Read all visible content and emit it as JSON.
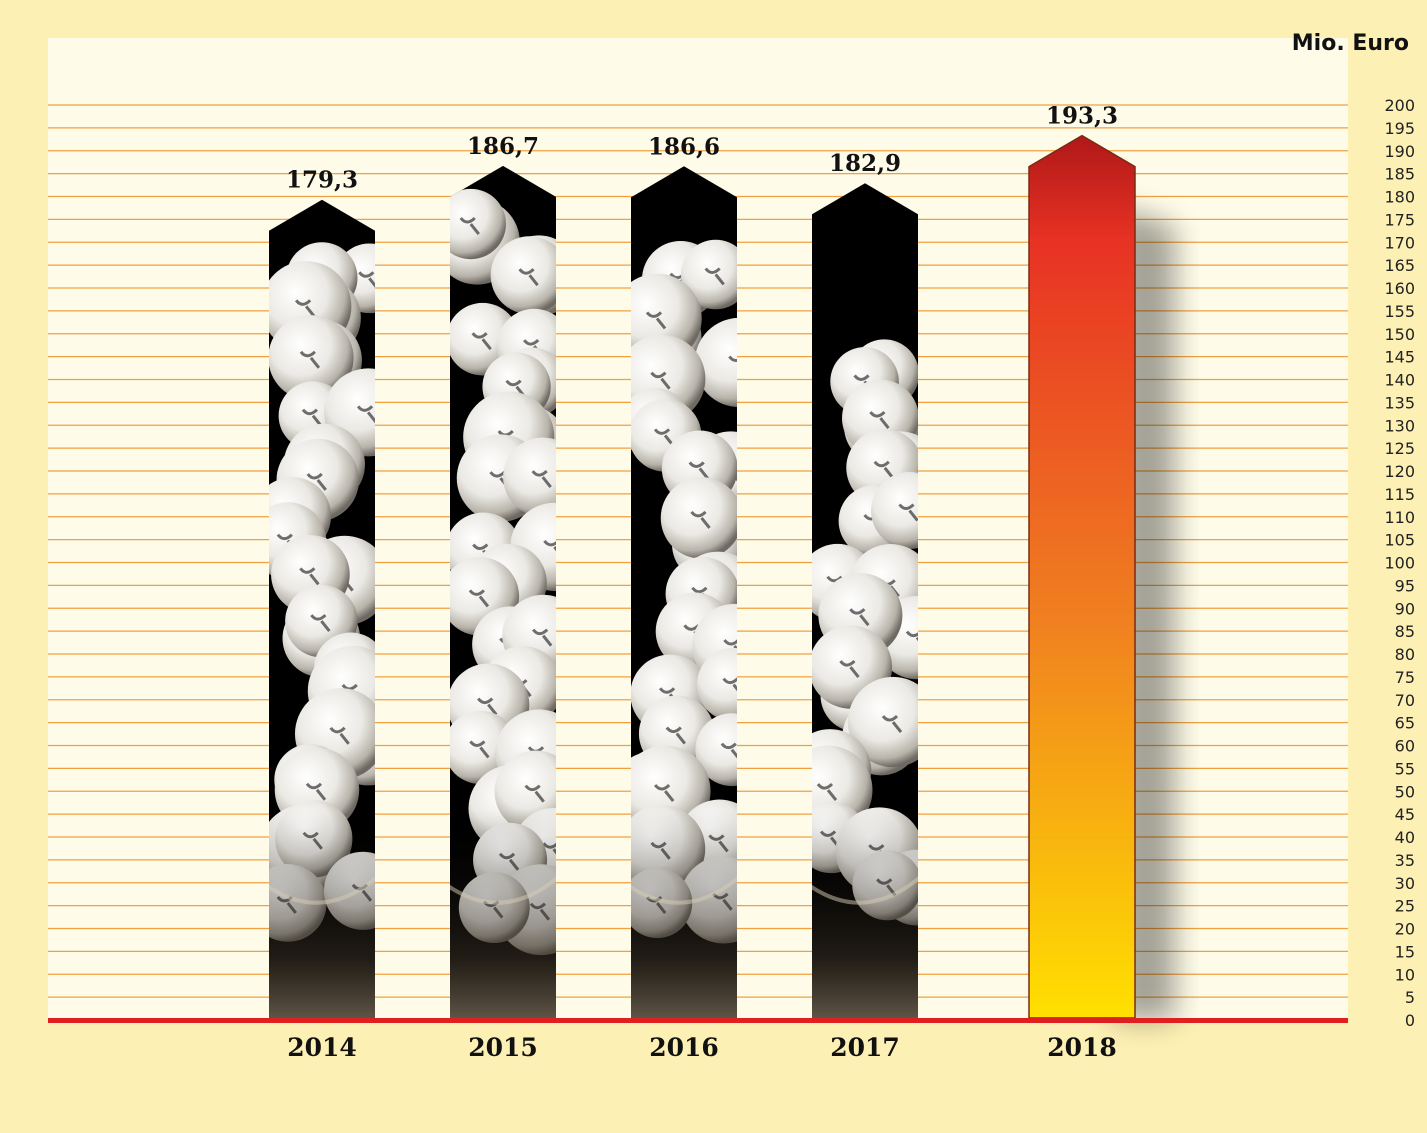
{
  "chart_data": {
    "type": "bar",
    "unit_label": "Mio. Euro",
    "categories": [
      "2014",
      "2015",
      "2016",
      "2017",
      "2018"
    ],
    "values": [
      179.3,
      186.7,
      186.6,
      182.9,
      193.3
    ],
    "value_labels": [
      "179,3",
      "186,7",
      "186,6",
      "182,9",
      "193,3"
    ],
    "ylim": [
      0,
      200
    ],
    "ytick_step": 5,
    "grid": true,
    "bar_style": [
      "photo",
      "photo",
      "photo",
      "photo",
      "gradient"
    ],
    "colors": {
      "background": "#fdf0b4",
      "plot_area": "#fefbe8",
      "grid": "#f0a040",
      "baseline": "#e02020",
      "gradient_top": "#b01818",
      "gradient_mid": "#f08020",
      "gradient_bottom": "#ffe000",
      "photo_dark": "#000000"
    }
  }
}
